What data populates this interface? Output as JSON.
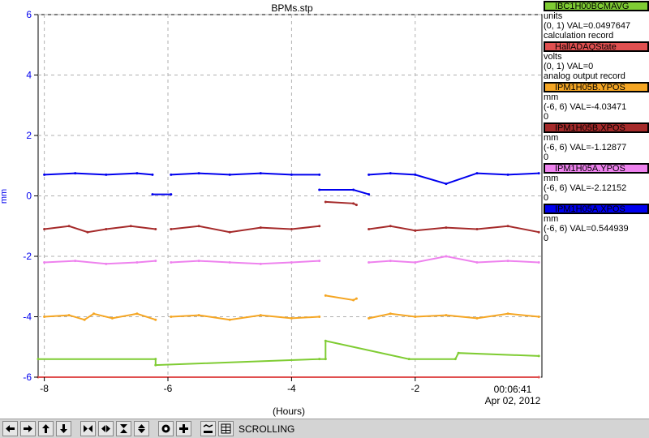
{
  "chart_data": {
    "type": "line",
    "title": "BPMs.stp",
    "xlabel": "(Hours)",
    "ylabel": "mm",
    "xlim": [
      -8.1,
      0.05
    ],
    "ylim": [
      -6,
      6
    ],
    "x_ticks": [
      -8,
      -6,
      -4,
      -2
    ],
    "y_ticks": [
      -6,
      -4,
      -2,
      0,
      2,
      4,
      6
    ],
    "grid": true,
    "timestamp_time": "00:06:41",
    "timestamp_date": "Apr 02, 2012",
    "series": [
      {
        "name": "IBC1H00BCMAVG",
        "color": "#7fcc33",
        "segments": [
          {
            "x": [
              -8.1,
              -6.2,
              -6.2,
              -3.55,
              -3.45,
              -3.45,
              -2.1,
              -1.35,
              -1.3,
              0.0
            ],
            "y": [
              -5.4,
              -5.4,
              -5.6,
              -5.4,
              -5.4,
              -4.8,
              -5.4,
              -5.4,
              -5.2,
              -5.3
            ]
          }
        ]
      },
      {
        "name": "HallADAQState",
        "color": "#e05050",
        "segments": [
          {
            "x": [
              -8.1,
              0.0
            ],
            "y": [
              -6.0,
              -6.0
            ]
          }
        ]
      },
      {
        "name": "IPM1H05B.YPOS",
        "color": "#f5a623",
        "segments": [
          {
            "x": [
              -8.0,
              -7.6,
              -7.35,
              -7.2,
              -6.9,
              -6.5,
              -6.2
            ],
            "y": [
              -4.0,
              -3.95,
              -4.1,
              -3.9,
              -4.05,
              -3.9,
              -4.1
            ]
          },
          {
            "x": [
              -5.95,
              -5.5,
              -5.0,
              -4.5,
              -4.0,
              -3.55
            ],
            "y": [
              -4.0,
              -3.95,
              -4.1,
              -3.95,
              -4.05,
              -4.0
            ]
          },
          {
            "x": [
              -3.45,
              -3.0,
              -2.95
            ],
            "y": [
              -3.3,
              -3.45,
              -3.4
            ]
          },
          {
            "x": [
              -2.75,
              -2.4,
              -2.0,
              -1.5,
              -1.0,
              -0.5,
              0.0
            ],
            "y": [
              -4.05,
              -3.9,
              -4.0,
              -3.95,
              -4.05,
              -3.9,
              -4.0
            ]
          }
        ]
      },
      {
        "name": "IPM1H05B.XPOS",
        "color": "#a52a2a",
        "segments": [
          {
            "x": [
              -8.0,
              -7.6,
              -7.3,
              -7.0,
              -6.6,
              -6.2
            ],
            "y": [
              -1.1,
              -1.0,
              -1.2,
              -1.1,
              -1.0,
              -1.1
            ]
          },
          {
            "x": [
              -5.95,
              -5.5,
              -5.0,
              -4.5,
              -4.0,
              -3.55
            ],
            "y": [
              -1.1,
              -1.0,
              -1.2,
              -1.05,
              -1.1,
              -1.0
            ]
          },
          {
            "x": [
              -3.45,
              -3.0,
              -2.95
            ],
            "y": [
              -0.2,
              -0.25,
              -0.3
            ]
          },
          {
            "x": [
              -2.75,
              -2.4,
              -2.0,
              -1.5,
              -1.0,
              -0.5,
              0.0
            ],
            "y": [
              -1.1,
              -1.0,
              -1.15,
              -1.05,
              -1.1,
              -1.0,
              -1.2
            ]
          }
        ]
      },
      {
        "name": "IPM1H05A.YPOS",
        "color": "#ee82ee",
        "segments": [
          {
            "x": [
              -8.0,
              -7.5,
              -7.0,
              -6.5,
              -6.2
            ],
            "y": [
              -2.2,
              -2.15,
              -2.25,
              -2.2,
              -2.15
            ]
          },
          {
            "x": [
              -5.95,
              -5.5,
              -5.0,
              -4.5,
              -4.0,
              -3.55
            ],
            "y": [
              -2.2,
              -2.15,
              -2.2,
              -2.25,
              -2.2,
              -2.15
            ]
          },
          {
            "x": [
              -2.75,
              -2.4,
              -2.0,
              -1.5,
              -1.0,
              -0.5,
              0.0
            ],
            "y": [
              -2.2,
              -2.15,
              -2.2,
              -2.0,
              -2.2,
              -2.15,
              -2.2
            ]
          }
        ]
      },
      {
        "name": "IPM1H05A.XPOS",
        "color": "#0000ee",
        "segments": [
          {
            "x": [
              -8.0,
              -7.5,
              -7.0,
              -6.5,
              -6.25
            ],
            "y": [
              0.7,
              0.75,
              0.7,
              0.75,
              0.7
            ]
          },
          {
            "x": [
              -6.25,
              -5.95
            ],
            "y": [
              0.05,
              0.05
            ]
          },
          {
            "x": [
              -5.95,
              -5.5,
              -5.0,
              -4.5,
              -4.0,
              -3.55
            ],
            "y": [
              0.7,
              0.75,
              0.7,
              0.75,
              0.7,
              0.7
            ]
          },
          {
            "x": [
              -3.55,
              -3.0,
              -2.75
            ],
            "y": [
              0.2,
              0.2,
              0.05
            ]
          },
          {
            "x": [
              -2.75,
              -2.4,
              -2.0,
              -1.5,
              -1.0,
              -0.5,
              0.0
            ],
            "y": [
              0.7,
              0.75,
              0.7,
              0.4,
              0.75,
              0.7,
              0.75
            ]
          }
        ]
      }
    ]
  },
  "legend": [
    {
      "name": "IBC1H00BCMAVG",
      "color": "#7fcc33",
      "lines": [
        "units",
        "(0, 1) VAL=0.0497647",
        "calculation record"
      ]
    },
    {
      "name": "HallADAQState",
      "color": "#e05050",
      "lines": [
        "volts",
        "(0, 1) VAL=0",
        "analog output record"
      ]
    },
    {
      "name": "IPM1H05B.YPOS",
      "color": "#f5a623",
      "lines": [
        "mm",
        "(-6, 6) VAL=-4.03471",
        "0"
      ]
    },
    {
      "name": "IPM1H05B.XPOS",
      "color": "#a52a2a",
      "lines": [
        "mm",
        "(-6, 6) VAL=-1.12877",
        "0"
      ]
    },
    {
      "name": "IPM1H05A.YPOS",
      "color": "#ee82ee",
      "lines": [
        "mm",
        "(-6, 6) VAL=-2.12152",
        "0"
      ]
    },
    {
      "name": "IPM1H05A.XPOS",
      "color": "#0000ee",
      "lines": [
        "mm",
        "(-6, 6) VAL=0.544939",
        "0"
      ]
    }
  ],
  "toolbar": {
    "buttons": [
      {
        "name": "scroll-left-button",
        "icon": "arrow-left-icon"
      },
      {
        "name": "scroll-right-button",
        "icon": "arrow-right-icon"
      },
      {
        "name": "scroll-up-button",
        "icon": "arrow-up-icon"
      },
      {
        "name": "scroll-down-button",
        "icon": "arrow-down-icon"
      },
      {
        "name": "zoom-in-x-button",
        "icon": "zoom-in-horizontal-icon"
      },
      {
        "name": "zoom-out-x-button",
        "icon": "zoom-out-horizontal-icon"
      },
      {
        "name": "zoom-in-y-button",
        "icon": "zoom-in-vertical-icon"
      },
      {
        "name": "zoom-out-y-button",
        "icon": "zoom-out-vertical-icon"
      },
      {
        "name": "autoscale-button",
        "icon": "circle-target-icon"
      },
      {
        "name": "add-button",
        "icon": "plus-icon"
      },
      {
        "name": "stagger-button",
        "icon": "stagger-icon"
      },
      {
        "name": "grid-button",
        "icon": "grid-icon"
      }
    ],
    "status": "SCROLLING"
  }
}
